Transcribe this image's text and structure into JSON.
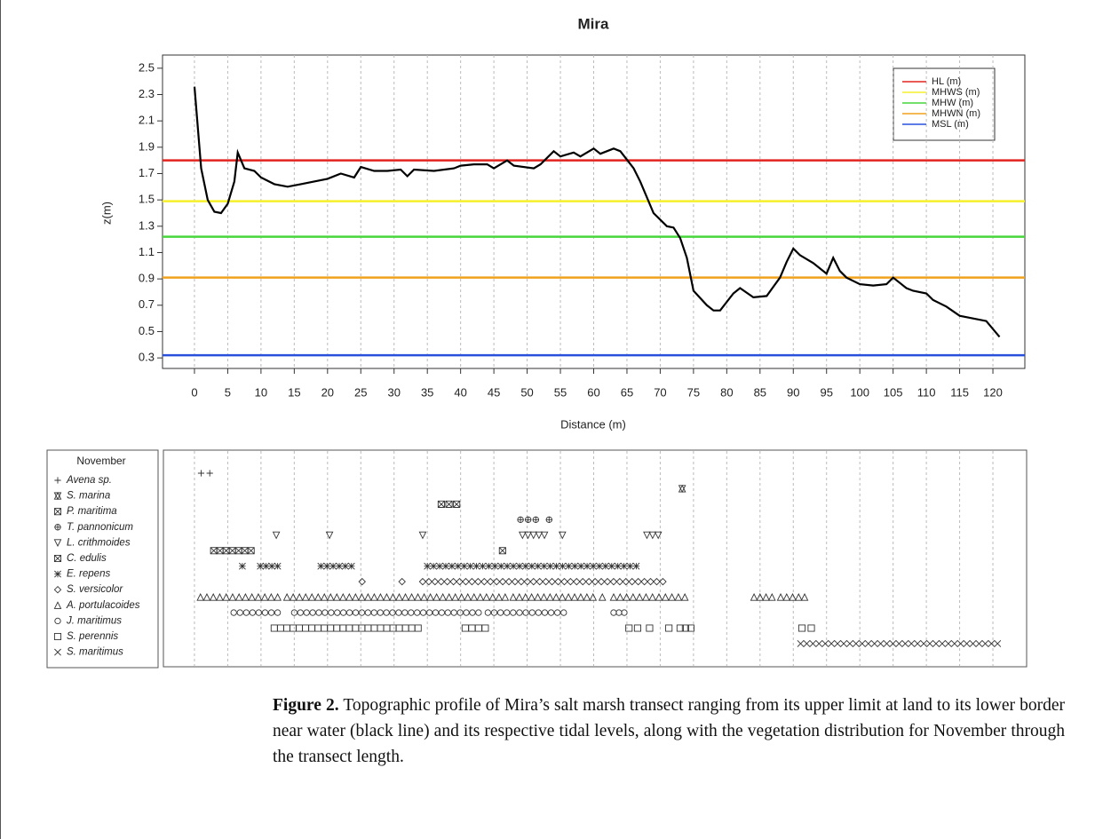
{
  "chart_data": [
    {
      "type": "line",
      "title": "Mira",
      "x_label": "Distance (m)",
      "y_label": "z(m)",
      "xlim": [
        -4.8,
        124.8
      ],
      "ylim": [
        0.22,
        2.6
      ],
      "xticks": [
        0,
        5,
        10,
        15,
        20,
        25,
        30,
        35,
        40,
        45,
        50,
        55,
        60,
        65,
        70,
        75,
        80,
        85,
        90,
        95,
        100,
        105,
        110,
        115,
        120
      ],
      "yticks": [
        0.3,
        0.5,
        0.7,
        0.9,
        1.1,
        1.3,
        1.5,
        1.7,
        1.9,
        2.1,
        2.3,
        2.5
      ],
      "grid": "x",
      "color": "#000000",
      "legend": "top-right",
      "x": [
        0,
        1,
        2,
        3,
        4,
        5,
        6,
        6.5,
        7.5,
        9,
        10,
        12,
        14,
        16,
        18,
        20,
        22,
        24,
        25,
        27,
        29,
        31,
        32,
        33,
        36,
        39,
        40,
        42,
        44,
        45,
        47,
        48,
        51,
        52,
        54,
        55,
        57,
        58,
        60,
        61,
        63,
        64,
        66,
        67,
        69,
        71,
        72,
        73,
        74,
        75,
        77,
        78,
        79,
        81,
        82,
        84,
        86,
        87,
        88,
        89,
        90,
        91,
        93,
        95,
        96,
        97,
        98,
        100,
        102,
        104,
        105,
        107,
        108,
        110,
        111,
        113,
        115,
        116,
        119,
        121
      ],
      "values": [
        2.36,
        1.74,
        1.5,
        1.41,
        1.4,
        1.47,
        1.64,
        1.86,
        1.74,
        1.72,
        1.67,
        1.62,
        1.6,
        1.62,
        1.64,
        1.66,
        1.7,
        1.67,
        1.75,
        1.72,
        1.72,
        1.73,
        1.68,
        1.73,
        1.72,
        1.74,
        1.76,
        1.77,
        1.77,
        1.74,
        1.8,
        1.76,
        1.74,
        1.77,
        1.87,
        1.83,
        1.86,
        1.83,
        1.89,
        1.85,
        1.89,
        1.87,
        1.74,
        1.64,
        1.4,
        1.3,
        1.29,
        1.21,
        1.06,
        0.81,
        0.7,
        0.66,
        0.66,
        0.79,
        0.83,
        0.76,
        0.77,
        0.84,
        0.91,
        1.03,
        1.13,
        1.08,
        1.02,
        0.94,
        1.06,
        0.96,
        0.91,
        0.86,
        0.85,
        0.86,
        0.91,
        0.83,
        0.81,
        0.79,
        0.74,
        0.69,
        0.62,
        0.61,
        0.58,
        0.46
      ],
      "hlines": [
        {
          "name": "HL (m)",
          "value": 1.8,
          "color": "#e3231e"
        },
        {
          "name": "MHWS (m)",
          "value": 1.49,
          "color": "#f5f02a"
        },
        {
          "name": "MHW (m)",
          "value": 1.22,
          "color": "#47d63b"
        },
        {
          "name": "MHWN (m)",
          "value": 0.91,
          "color": "#f0a21c"
        },
        {
          "name": "MSL (m)",
          "value": 0.32,
          "color": "#2950dd"
        }
      ]
    },
    {
      "type": "presence",
      "title": "November",
      "xlim": [
        -4.8,
        124.8
      ],
      "series": [
        {
          "name": "Avena sp.",
          "segments": [
            [
              1,
              2.3
            ]
          ]
        },
        {
          "name": "S. marina",
          "segments": [
            [
              73.3,
              73.3
            ]
          ]
        },
        {
          "name": "P. maritima",
          "segments": [
            [
              37.1,
              39.4
            ]
          ]
        },
        {
          "name": "T. pannonicum",
          "segments": [
            [
              49,
              51.3
            ],
            [
              53.3,
              53.3
            ]
          ]
        },
        {
          "name": "L. crithmoides",
          "segments": [
            [
              12.3,
              12.3
            ],
            [
              20.3,
              20.3
            ],
            [
              34.3,
              34.3
            ],
            [
              49.3,
              52.6
            ],
            [
              55.3,
              55.3
            ],
            [
              68,
              69.7
            ]
          ]
        },
        {
          "name": "C. edulis",
          "segments": [
            [
              2.9,
              8.5
            ],
            [
              46.3,
              46.3
            ]
          ]
        },
        {
          "name": "E. repens",
          "segments": [
            [
              7.2,
              7.2
            ],
            [
              9.9,
              12.5
            ],
            [
              19,
              23.6
            ],
            [
              35,
              66.4
            ]
          ]
        },
        {
          "name": "S. versicolor",
          "segments": [
            [
              25.2,
              25.2
            ],
            [
              31.2,
              31.2
            ],
            [
              34.3,
              70.4
            ]
          ]
        },
        {
          "name": "A. portulacoides",
          "segments": [
            [
              0.9,
              12.5
            ],
            [
              13.9,
              46.7
            ],
            [
              47.9,
              59.9
            ],
            [
              61.3,
              61.3
            ],
            [
              63,
              73.7
            ],
            [
              84.1,
              86.8
            ],
            [
              88.1,
              91.7
            ]
          ]
        },
        {
          "name": "J. maritimus",
          "segments": [
            [
              5.9,
              12.5
            ],
            [
              15,
              42.7
            ],
            [
              44.1,
              55.5
            ],
            [
              63,
              64.6
            ]
          ]
        },
        {
          "name": "S. perennis",
          "segments": [
            [
              12,
              33.6
            ],
            [
              40.7,
              43.7
            ],
            [
              65.3,
              66.6
            ],
            [
              68.4,
              68.4
            ],
            [
              71.3,
              71.3
            ],
            [
              73,
              74.6
            ],
            [
              91.3,
              92.7
            ]
          ]
        },
        {
          "name": "S. maritimus",
          "segments": [
            [
              91.1,
              120.7
            ]
          ]
        }
      ]
    }
  ],
  "caption": {
    "label": "Figure 2.",
    "text": "Topographic profile of Mira’s salt marsh transect ranging from its upper limit at land to its lower border near water (black line) and its respective tidal levels, along with the vegetation distribution for November through the transect length."
  }
}
